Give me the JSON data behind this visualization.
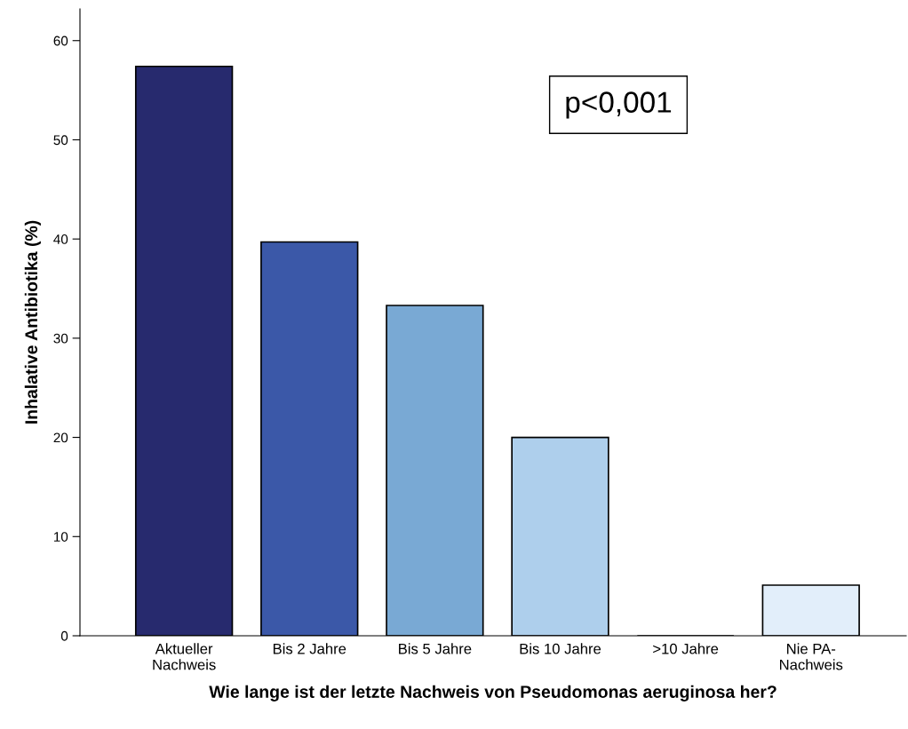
{
  "chart_data": {
    "type": "bar",
    "xlabel": "Wie lange ist der letzte Nachweis von Pseudomonas aeruginosa her?",
    "ylabel": "Inhalative Antibiotika (%)",
    "categories": [
      "Aktueller\nNachweis",
      "Bis 2 Jahre",
      "Bis 5 Jahre",
      "Bis 10 Jahre",
      ">10 Jahre",
      "Nie PA-\nNachweis"
    ],
    "values": [
      57.4,
      39.7,
      33.3,
      20.0,
      0,
      5.1
    ],
    "colors": [
      "#272a6e",
      "#3b58a8",
      "#79a9d4",
      "#aecfec",
      "#000000",
      "#e2eefa"
    ],
    "ylim": [
      0,
      63.2
    ],
    "yticks": [
      0,
      10,
      20,
      30,
      40,
      50,
      60
    ],
    "grid": false,
    "legend": false,
    "annotations": [
      "p<0,001"
    ]
  }
}
